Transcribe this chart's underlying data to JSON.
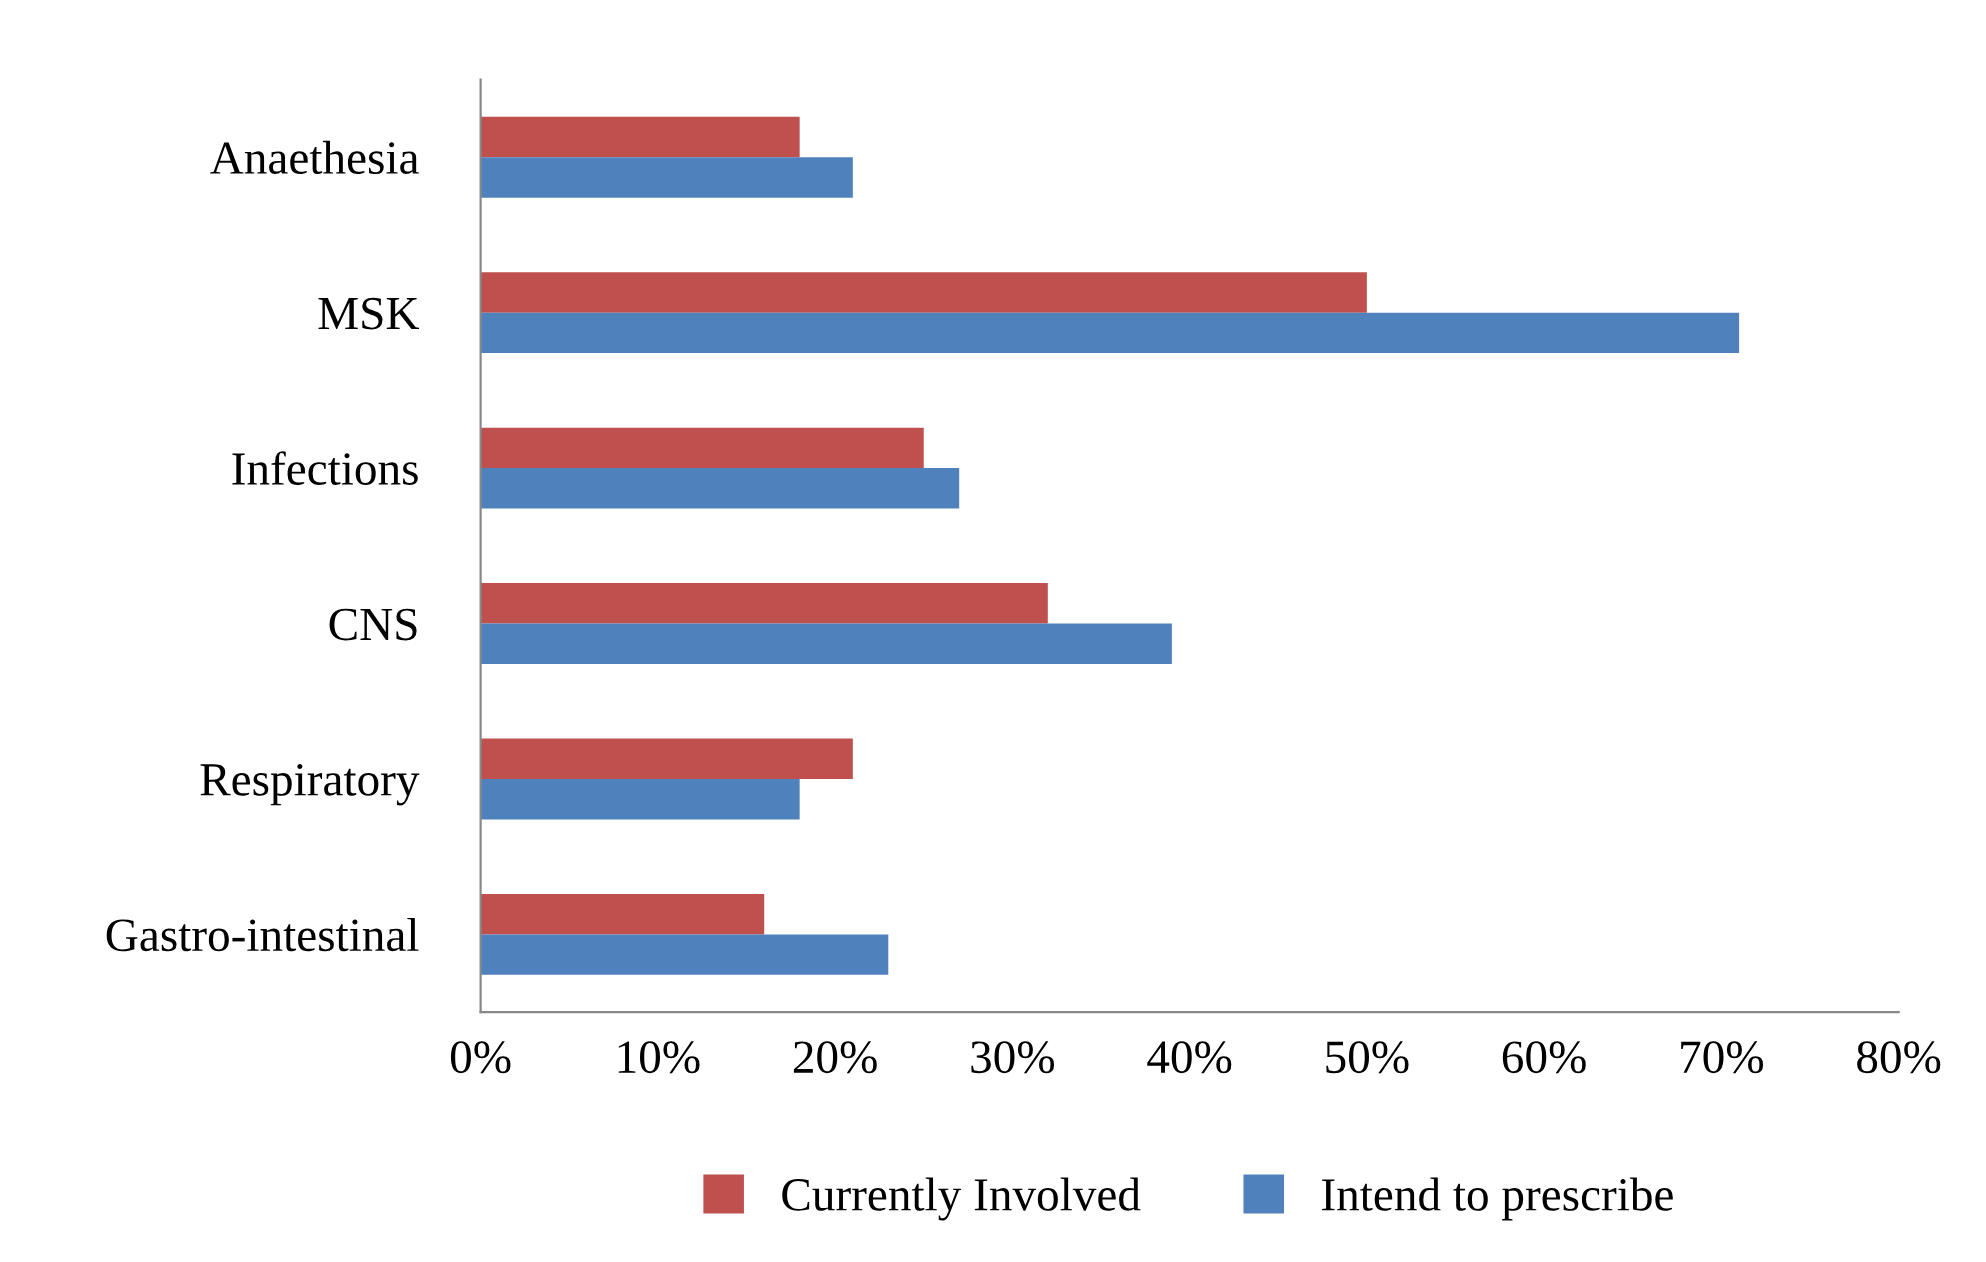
{
  "chart_data": {
    "type": "bar",
    "orientation": "horizontal",
    "categories": [
      "Anaethesia",
      "MSK",
      "Infections",
      "CNS",
      "Respiratory",
      "Gastro-intestinal"
    ],
    "series": [
      {
        "name": "Currently Involved",
        "color": "#c0504d",
        "values": [
          18,
          50,
          25,
          32,
          21,
          16
        ]
      },
      {
        "name": "Intend to prescribe",
        "color": "#4f81bd",
        "values": [
          21,
          71,
          27,
          39,
          18,
          23
        ]
      }
    ],
    "xlim": [
      0,
      80
    ],
    "xticks": [
      {
        "value": 0,
        "label": "0%"
      },
      {
        "value": 10,
        "label": "10%"
      },
      {
        "value": 20,
        "label": "20%"
      },
      {
        "value": 30,
        "label": "30%"
      },
      {
        "value": 40,
        "label": "40%"
      },
      {
        "value": 50,
        "label": "50%"
      },
      {
        "value": 60,
        "label": "60%"
      },
      {
        "value": 70,
        "label": "70%"
      },
      {
        "value": 80,
        "label": "80%"
      }
    ],
    "grid": false,
    "legend": "bottom"
  }
}
